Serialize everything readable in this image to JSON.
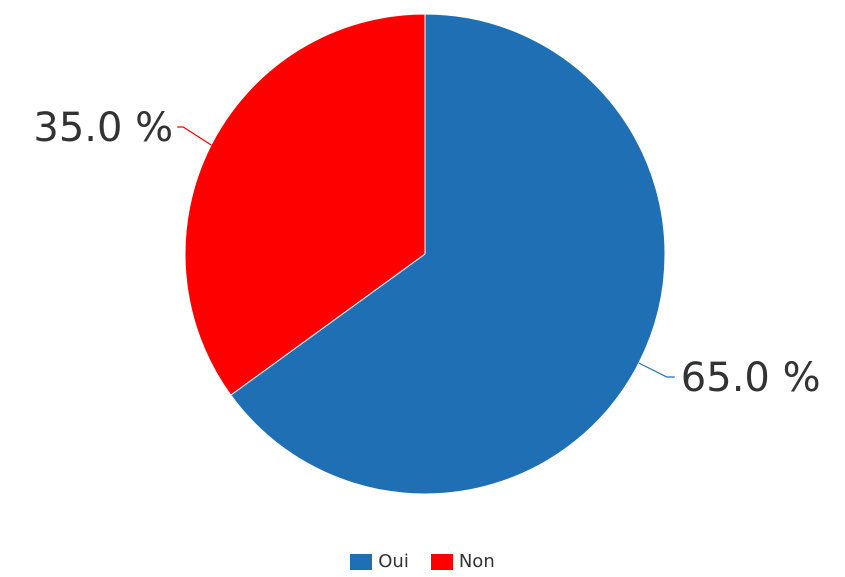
{
  "chart_data": {
    "type": "pie",
    "title": "",
    "slices": [
      {
        "label": "Oui",
        "value": 65.0,
        "display": "65.0 %",
        "color": "#1f6fb5"
      },
      {
        "label": "Non",
        "value": 35.0,
        "display": "35.0 %",
        "color": "#ff0000"
      }
    ],
    "legend_position": "bottom"
  }
}
